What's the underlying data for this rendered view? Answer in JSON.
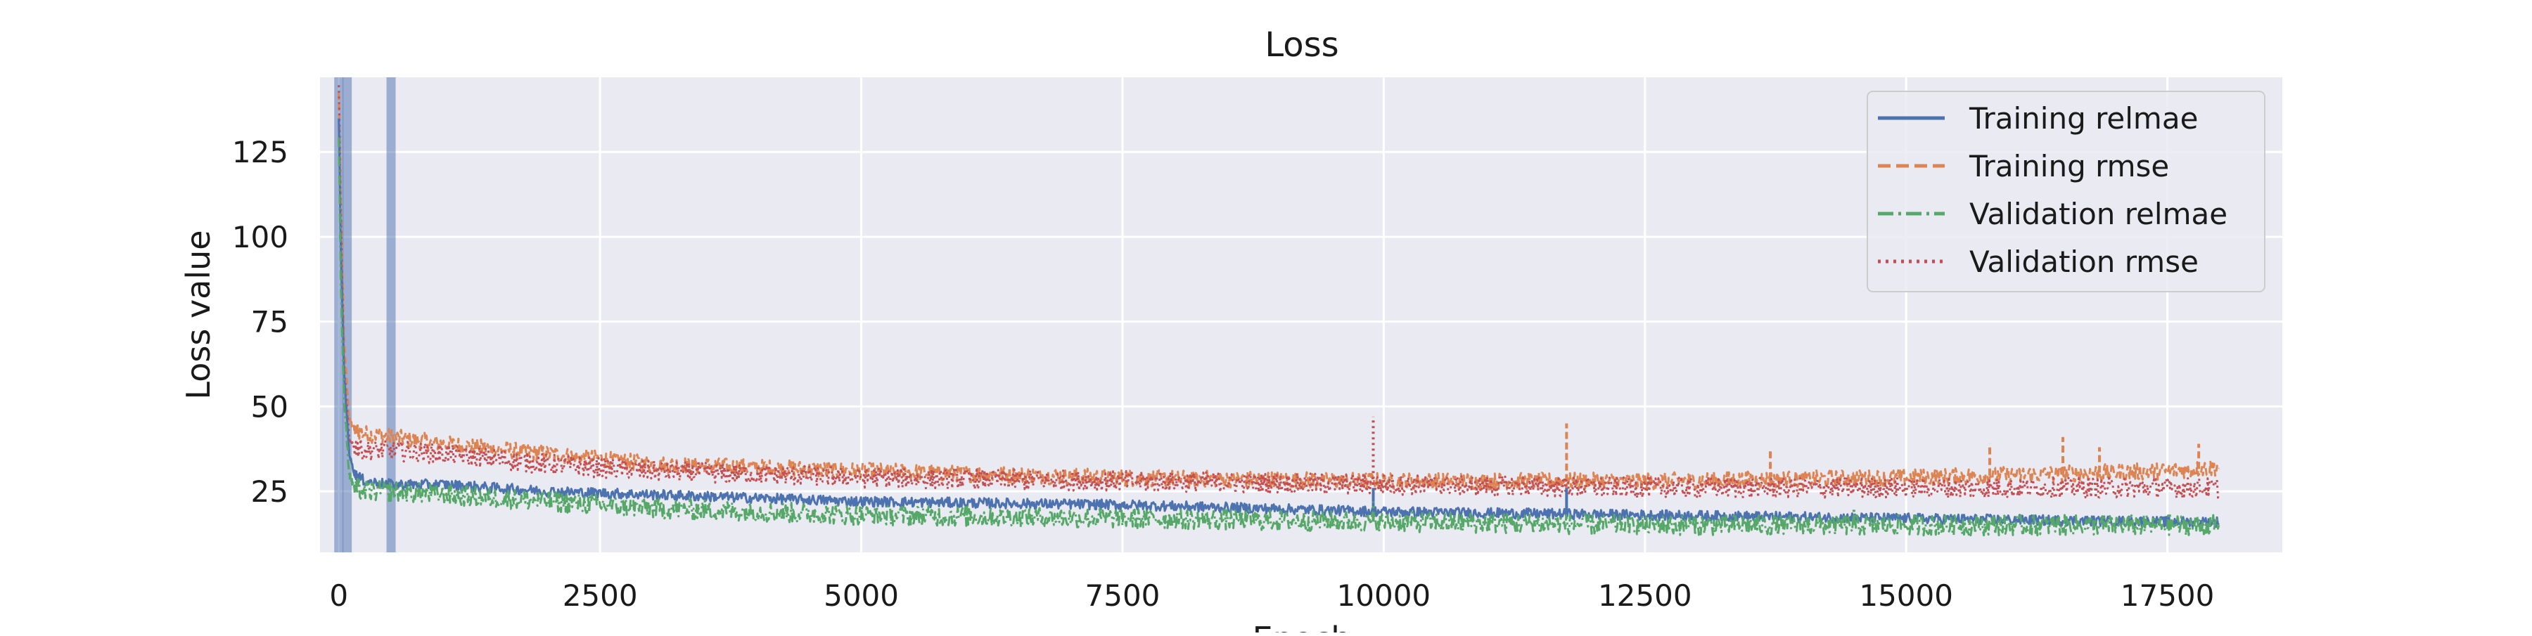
{
  "chart_data": {
    "type": "line",
    "title": "Loss",
    "xlabel": "Epoch",
    "ylabel": "Loss value",
    "xlim": [
      -180,
      18600
    ],
    "ylim": [
      7,
      147
    ],
    "x_ticks": [
      0,
      2500,
      5000,
      7500,
      10000,
      12500,
      15000,
      17500
    ],
    "y_ticks": [
      25,
      50,
      75,
      100,
      125
    ],
    "grid": true,
    "legend_position": "top-right",
    "vertical_markers": [
      0,
      80,
      500
    ],
    "series": [
      {
        "name": "Training relmae",
        "color": "#4c72b0",
        "style": "solid",
        "x": [
          0,
          20,
          50,
          100,
          150,
          250,
          500,
          1000,
          2000,
          3000,
          5000,
          7500,
          10000,
          12500,
          15000,
          17500,
          18000
        ],
        "y": [
          135,
          95,
          60,
          36,
          30,
          28,
          27,
          27,
          25,
          24,
          22,
          21,
          19,
          18,
          17,
          16,
          16
        ],
        "noise": 1.5,
        "spikes": [
          [
            9900,
            26
          ],
          [
            11750,
            26
          ]
        ]
      },
      {
        "name": "Training rmse",
        "color": "#dd8452",
        "style": "dashed",
        "x": [
          0,
          20,
          50,
          100,
          150,
          250,
          500,
          1000,
          2000,
          3000,
          5000,
          7500,
          10000,
          12500,
          15000,
          17500,
          18000
        ],
        "y": [
          142,
          110,
          70,
          46,
          43,
          42,
          41,
          39,
          36,
          33,
          31,
          29,
          28,
          28,
          29,
          31,
          32
        ],
        "noise": 2.5,
        "spikes": [
          [
            11750,
            45
          ],
          [
            13700,
            37
          ],
          [
            15800,
            39
          ],
          [
            16500,
            41
          ],
          [
            16850,
            38
          ],
          [
            17800,
            39
          ]
        ]
      },
      {
        "name": "Validation relmae",
        "color": "#55a868",
        "style": "dashdot",
        "x": [
          0,
          20,
          50,
          100,
          150,
          250,
          500,
          1000,
          2000,
          3000,
          5000,
          7500,
          10000,
          12500,
          15000,
          17500,
          18000
        ],
        "y": [
          130,
          85,
          52,
          30,
          26,
          25,
          25,
          24,
          22,
          20,
          18,
          17,
          16,
          15,
          15,
          15,
          15
        ],
        "noise": 3.0,
        "spikes": [
          [
            9900,
            22
          ],
          [
            14500,
            20
          ]
        ]
      },
      {
        "name": "Validation rmse",
        "color": "#c44e52",
        "style": "dotted",
        "x": [
          0,
          20,
          50,
          100,
          150,
          250,
          500,
          1000,
          2000,
          3000,
          5000,
          7500,
          10000,
          12500,
          15000,
          17500,
          18000
        ],
        "y": [
          145,
          105,
          62,
          40,
          38,
          37,
          37,
          36,
          33,
          31,
          29,
          28,
          27,
          26,
          26,
          26,
          26
        ],
        "noise": 3.0,
        "spikes": [
          [
            9900,
            47
          ]
        ]
      }
    ]
  }
}
